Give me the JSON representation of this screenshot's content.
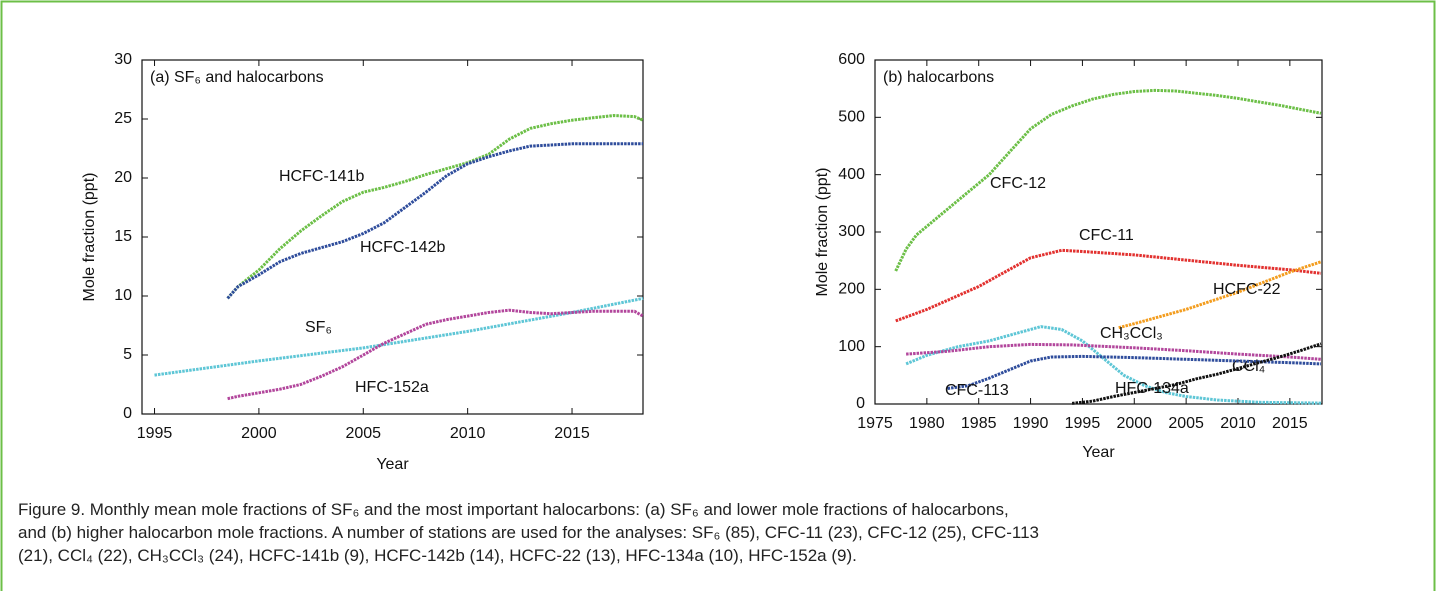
{
  "chart_data": [
    {
      "type": "line",
      "annotation_title": "(a) SF₆ and halocarbons",
      "xlabel": "Year",
      "ylabel": "Mole fraction (ppt)",
      "xlim": [
        1994.4,
        2018.4
      ],
      "xticks": [
        1995,
        2000,
        2005,
        2010,
        2015
      ],
      "ylim": [
        0,
        30
      ],
      "yticks": [
        0,
        5,
        10,
        15,
        20,
        25,
        30
      ],
      "series": [
        {
          "name": "HCFC-141b",
          "color": "#6cbf47",
          "x": [
            1998.5,
            1999,
            2000,
            2001,
            2002,
            2003,
            2004,
            2005,
            2006,
            2007,
            2008,
            2009,
            2010,
            2011,
            2012,
            2013,
            2014,
            2015,
            2016,
            2017,
            2018,
            2018.4
          ],
          "values": [
            9.8,
            10.8,
            12.2,
            14,
            15.5,
            16.8,
            18,
            18.8,
            19.2,
            19.7,
            20.3,
            20.8,
            21.3,
            22,
            23.3,
            24.2,
            24.6,
            24.9,
            25.1,
            25.3,
            25.2,
            24.9
          ]
        },
        {
          "name": "HCFC-142b",
          "color": "#2f4d9c",
          "x": [
            1998.5,
            1999,
            2000,
            2001,
            2002,
            2003,
            2004,
            2005,
            2006,
            2007,
            2008,
            2009,
            2010,
            2011,
            2012,
            2013,
            2014,
            2015,
            2016,
            2017,
            2018,
            2018.4
          ],
          "values": [
            9.8,
            10.8,
            11.8,
            12.9,
            13.6,
            14.1,
            14.6,
            15.3,
            16.2,
            17.5,
            18.8,
            20.2,
            21.2,
            21.8,
            22.3,
            22.7,
            22.8,
            22.9,
            22.9,
            22.9,
            22.9,
            22.9
          ]
        },
        {
          "name": "SF₆",
          "color": "#5ec6d6",
          "x": [
            1995,
            2000,
            2005,
            2010,
            2015,
            2018.4
          ],
          "values": [
            3.3,
            4.5,
            5.6,
            7.0,
            8.6,
            9.8
          ]
        },
        {
          "name": "HFC-152a",
          "color": "#b2469c",
          "x": [
            1998.5,
            1999,
            2000,
            2001,
            2002,
            2003,
            2004,
            2005,
            2006,
            2007,
            2008,
            2009,
            2010,
            2011,
            2012,
            2013,
            2014,
            2015,
            2016,
            2017,
            2018,
            2018.4
          ],
          "values": [
            1.3,
            1.5,
            1.8,
            2.1,
            2.5,
            3.2,
            4.0,
            5.0,
            6.0,
            6.8,
            7.6,
            8.0,
            8.3,
            8.6,
            8.8,
            8.6,
            8.5,
            8.6,
            8.7,
            8.7,
            8.7,
            8.3
          ]
        }
      ]
    },
    {
      "type": "line",
      "annotation_title": "(b) halocarbons",
      "xlabel": "Year",
      "ylabel": "Mole fraction (ppt)",
      "xlim": [
        1975,
        2018.1
      ],
      "xticks": [
        1975,
        1980,
        1985,
        1990,
        1995,
        2000,
        2005,
        2010,
        2015
      ],
      "ylim": [
        0,
        600
      ],
      "yticks": [
        0,
        100,
        200,
        300,
        400,
        500,
        600
      ],
      "series": [
        {
          "name": "CFC-12",
          "color": "#6cbf47",
          "x": [
            1977,
            1978,
            1979,
            1980,
            1982,
            1984,
            1986,
            1988,
            1990,
            1992,
            1994,
            1996,
            1998,
            2000,
            2002,
            2004,
            2006,
            2008,
            2010,
            2012,
            2014,
            2016,
            2018
          ],
          "values": [
            232,
            270,
            295,
            310,
            340,
            370,
            400,
            440,
            480,
            505,
            520,
            532,
            540,
            545,
            547,
            546,
            542,
            538,
            533,
            527,
            521,
            514,
            507
          ]
        },
        {
          "name": "CFC-11",
          "color": "#e2312f",
          "x": [
            1977,
            1980,
            1985,
            1990,
            1993,
            1995,
            2000,
            2005,
            2010,
            2015,
            2018
          ],
          "values": [
            145,
            165,
            205,
            255,
            268,
            266,
            260,
            251,
            242,
            234,
            228
          ]
        },
        {
          "name": "HCFC-22",
          "color": "#f39d1f",
          "x": [
            1998.5,
            2000,
            2005,
            2010,
            2015,
            2018
          ],
          "values": [
            133,
            140,
            165,
            195,
            230,
            248
          ]
        },
        {
          "name": "CH₃CCl₃",
          "color": "#5ec6d6",
          "x": [
            1978,
            1980,
            1983,
            1986,
            1989,
            1991,
            1993,
            1995,
            1997,
            1999,
            2001,
            2003,
            2005,
            2008,
            2012,
            2018
          ],
          "values": [
            70,
            85,
            100,
            110,
            125,
            135,
            130,
            110,
            80,
            50,
            32,
            20,
            13,
            7,
            3,
            1.5
          ]
        },
        {
          "name": "CCl₄",
          "color": "#b2469c",
          "x": [
            1978,
            1982,
            1986,
            1990,
            1994,
            2000,
            2005,
            2010,
            2015,
            2018
          ],
          "values": [
            87,
            92,
            100,
            104,
            103,
            98,
            93,
            87,
            82,
            78
          ]
        },
        {
          "name": "CFC-113",
          "color": "#2f4d9c",
          "x": [
            1982,
            1984,
            1986,
            1988,
            1990,
            1992,
            1995,
            2000,
            2005,
            2010,
            2015,
            2018
          ],
          "values": [
            27,
            32,
            45,
            60,
            75,
            82,
            83,
            81,
            78,
            75,
            72,
            70
          ]
        },
        {
          "name": "HFC-134a",
          "color": "#111111",
          "x": [
            1994,
            1996,
            1998,
            2000,
            2002,
            2004,
            2006,
            2008,
            2010,
            2012,
            2014,
            2016,
            2018
          ],
          "values": [
            1,
            5,
            13,
            20,
            27,
            34,
            44,
            52,
            62,
            72,
            82,
            93,
            105
          ]
        }
      ]
    }
  ],
  "caption": [
    "Figure 9.  Monthly mean mole fractions of SF₆ and the most important halocarbons: (a) SF₆ and lower mole fractions of halocarbons,",
    "and (b) higher halocarbon mole fractions. A number of stations are used for the analyses: SF₆ (85), CFC-11 (23), CFC-12 (25), CFC-113",
    "(21), CCl₄ (22), CH₃CCl₃ (24), HCFC-141b (9), HCFC-142b (14), HCFC-22 (13), HFC-134a (10), HFC-152a (9)."
  ]
}
